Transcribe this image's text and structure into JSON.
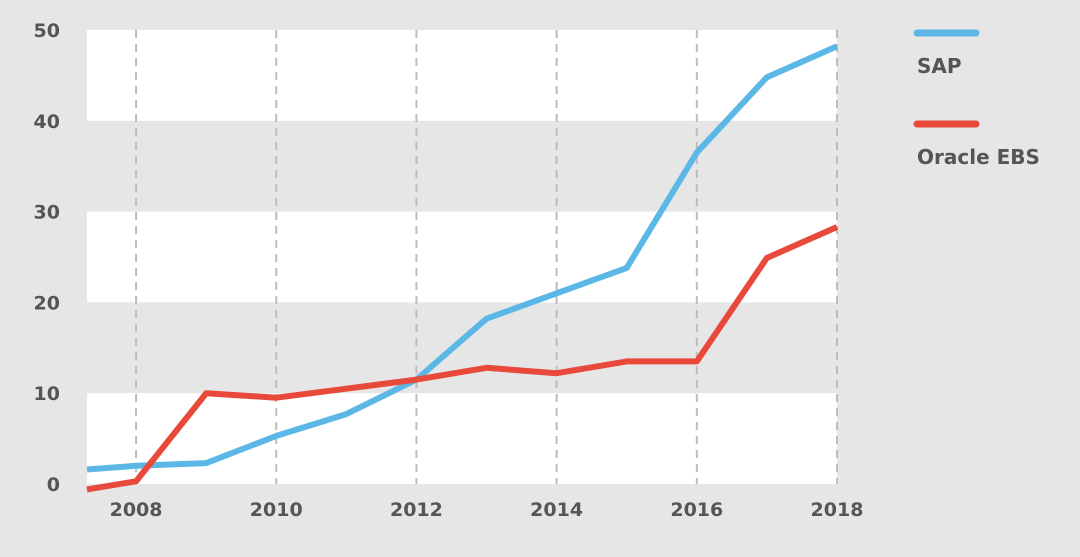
{
  "chart_data": {
    "type": "line",
    "x": [
      2007.3,
      2008,
      2009,
      2010,
      2011,
      2012,
      2013,
      2014,
      2015,
      2016,
      2017,
      2018
    ],
    "series": [
      {
        "name": "SAP",
        "color": "#5bb8e6",
        "values": [
          1.6,
          2.0,
          2.3,
          5.3,
          7.7,
          11.5,
          18.2,
          21.0,
          23.8,
          36.5,
          44.8,
          48.2
        ]
      },
      {
        "name": "Oracle EBS",
        "color": "#e8493b",
        "values": [
          -0.6,
          0.3,
          10.0,
          9.5,
          10.5,
          11.5,
          12.8,
          12.2,
          13.5,
          13.5,
          24.9,
          28.3
        ]
      }
    ],
    "xlim": [
      2007.3,
      2018
    ],
    "ylim": [
      0,
      50
    ],
    "x_ticks": [
      "2008",
      "2010",
      "2012",
      "2014",
      "2016",
      "2018"
    ],
    "y_ticks": [
      "0",
      "10",
      "20",
      "30",
      "40",
      "50"
    ],
    "x_gridlines": "dashed vertical at labeled years",
    "background_bands": "alternating white / light gray horizontal bands",
    "legend_position": "right",
    "title": "",
    "xlabel": "",
    "ylabel": ""
  }
}
